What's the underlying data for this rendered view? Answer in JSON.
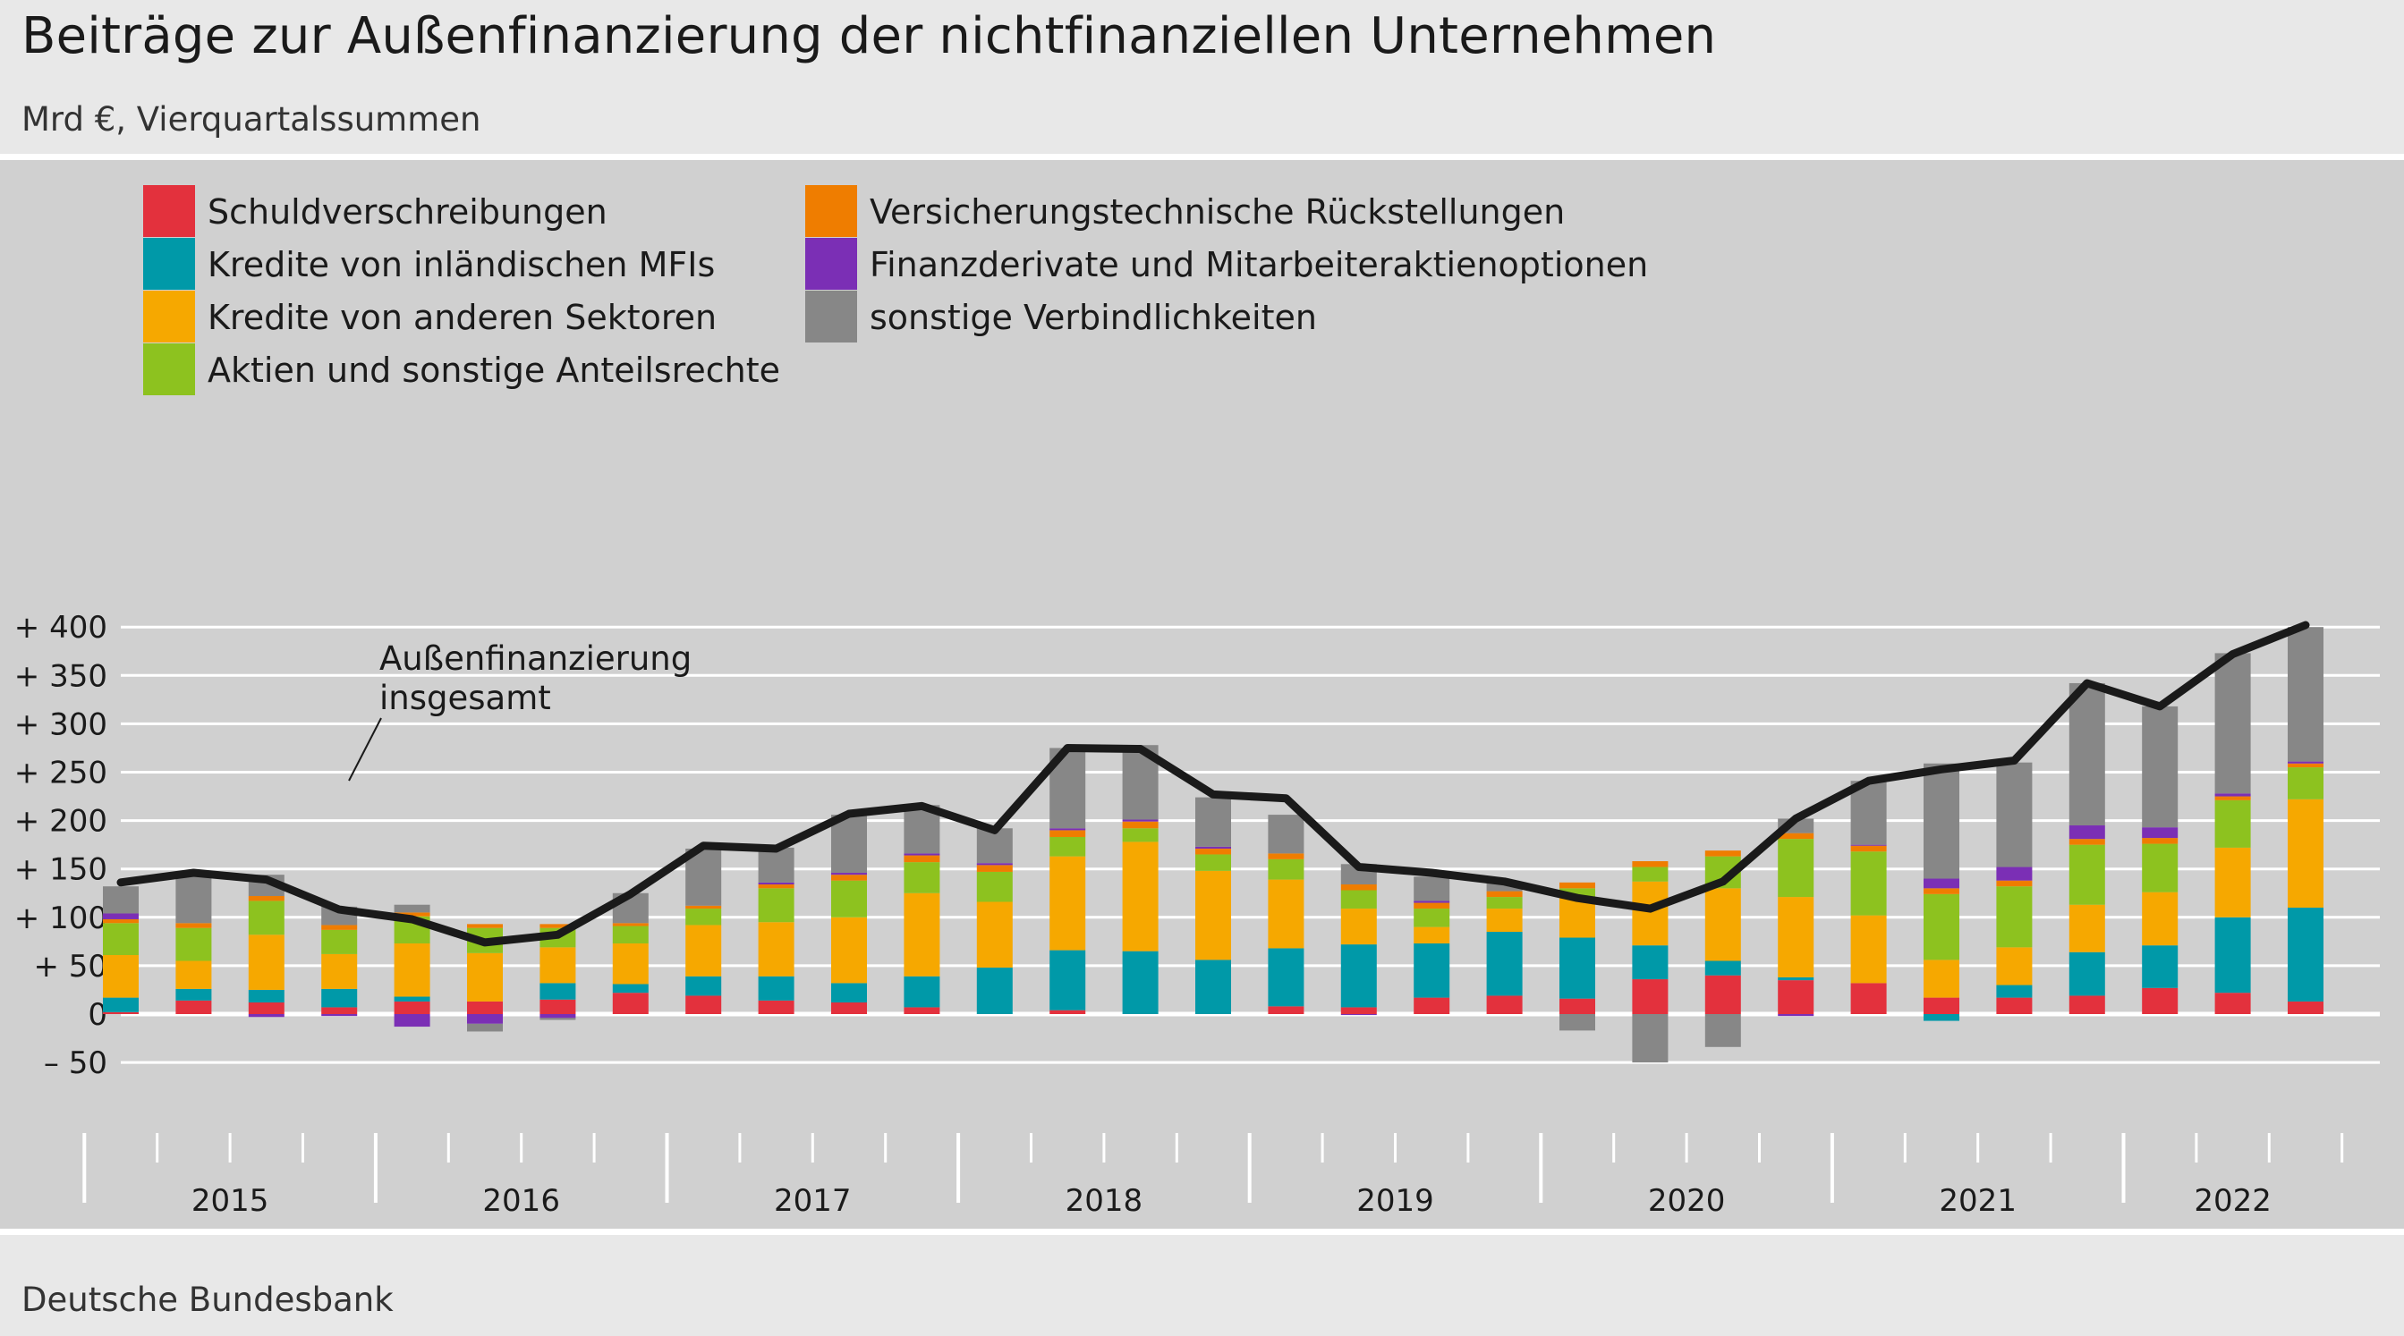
{
  "title": "Beiträge zur Außenfinanzierung der nichtfinanziellen Unternehmen",
  "subtitle": "Mrd €, Vierquartalssummen",
  "source": "Deutsche Bundesbank",
  "annotation": [
    "Außenfinanzierung",
    "insgesamt"
  ],
  "chart_data": {
    "type": "bar",
    "stacked": true,
    "unit": "Mrd €",
    "ylim": [
      -50,
      400
    ],
    "yticks": [
      -50,
      0,
      50,
      100,
      150,
      200,
      250,
      300,
      350,
      400
    ],
    "ytick_labels": [
      "–  50",
      "0",
      "+  50",
      "+ 100",
      "+ 150",
      "+ 200",
      "+ 250",
      "+ 300",
      "+ 350",
      "+ 400"
    ],
    "grid": true,
    "legend_position": "top-left",
    "years": [
      "2015",
      "2016",
      "2017",
      "2018",
      "2019",
      "2020",
      "2021",
      "2022"
    ],
    "quarters": [
      "2015 Q1",
      "2015 Q2",
      "2015 Q3",
      "2015 Q4",
      "2016 Q1",
      "2016 Q2",
      "2016 Q3",
      "2016 Q4",
      "2017 Q1",
      "2017 Q2",
      "2017 Q3",
      "2017 Q4",
      "2018 Q1",
      "2018 Q2",
      "2018 Q3",
      "2018 Q4",
      "2019 Q1",
      "2019 Q2",
      "2019 Q3",
      "2019 Q4",
      "2020 Q1",
      "2020 Q2",
      "2020 Q3",
      "2020 Q4",
      "2021 Q1",
      "2021 Q2",
      "2021 Q3",
      "2021 Q4",
      "2022 Q1",
      "2022 Q2",
      "2022 Q3"
    ],
    "series": [
      {
        "name": "Schuldverschreibungen",
        "color": "#e3313d",
        "values": [
          2,
          14,
          12,
          7,
          13,
          13,
          15,
          22,
          19,
          14,
          12,
          7,
          0,
          4,
          0,
          0,
          8,
          7,
          17,
          19,
          16,
          36,
          40,
          35,
          32,
          17,
          17,
          19,
          27,
          22,
          13
        ]
      },
      {
        "name": "Kredite von inländischen MFIs",
        "color": "#0099a8",
        "values": [
          15,
          12,
          13,
          19,
          5,
          0,
          17,
          9,
          20,
          25,
          20,
          32,
          48,
          62,
          65,
          56,
          60,
          65,
          56,
          66,
          63,
          35,
          15,
          3,
          0,
          -7,
          13,
          45,
          44,
          78,
          97
        ]
      },
      {
        "name": "Kredite von anderen Sektoren",
        "color": "#f6a800",
        "values": [
          44,
          29,
          57,
          36,
          55,
          50,
          37,
          42,
          53,
          56,
          68,
          86,
          68,
          97,
          113,
          92,
          71,
          37,
          17,
          24,
          42,
          66,
          75,
          83,
          70,
          39,
          39,
          49,
          55,
          72,
          112
        ]
      },
      {
        "name": "Aktien und sonstige Anteilsrechte",
        "color": "#8dc21f",
        "values": [
          33,
          34,
          35,
          25,
          28,
          26,
          20,
          18,
          17,
          35,
          38,
          32,
          31,
          20,
          14,
          17,
          21,
          19,
          19,
          12,
          9,
          15,
          33,
          60,
          66,
          68,
          63,
          62,
          50,
          49,
          33
        ]
      },
      {
        "name": "Versicherungstechnische Rückstellungen",
        "color": "#ef7d00",
        "values": [
          4,
          5,
          5,
          5,
          4,
          4,
          4,
          3,
          3,
          4,
          6,
          7,
          7,
          7,
          7,
          6,
          6,
          6,
          6,
          6,
          6,
          6,
          6,
          6,
          6,
          6,
          6,
          6,
          6,
          4,
          4
        ]
      },
      {
        "name": "Finanzderivate und Mitarbeiteraktienoptionen",
        "color": "#7b2fb5",
        "values": [
          6,
          0,
          -3,
          -2,
          -13,
          -10,
          -4,
          0,
          0,
          2,
          2,
          2,
          2,
          2,
          2,
          2,
          0,
          -1,
          2,
          0,
          0,
          0,
          0,
          -2,
          1,
          10,
          14,
          14,
          11,
          3,
          2
        ]
      },
      {
        "name": "sonstige Verbindlichkeiten",
        "color": "#878787",
        "values": [
          28,
          49,
          22,
          19,
          8,
          -8,
          -2,
          31,
          59,
          36,
          60,
          50,
          36,
          83,
          77,
          51,
          40,
          21,
          25,
          9,
          -17,
          -50,
          -34,
          15,
          66,
          119,
          108,
          147,
          125,
          145,
          139
        ]
      }
    ],
    "line": {
      "name": "Außenfinanzierung insgesamt",
      "color": "#1a1a1a",
      "values": [
        136,
        146,
        139,
        108,
        98,
        74,
        82,
        124,
        174,
        171,
        207,
        215,
        190,
        275,
        274,
        227,
        223,
        152,
        146,
        137,
        120,
        109,
        137,
        202,
        241,
        253,
        262,
        342,
        318,
        372,
        402
      ]
    }
  }
}
